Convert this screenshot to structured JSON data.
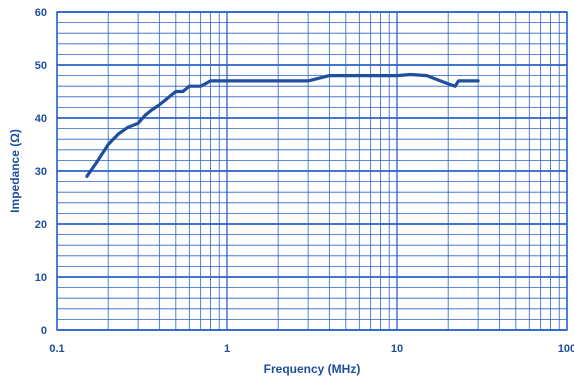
{
  "chart_data": {
    "type": "line",
    "title": "",
    "xlabel": "Frequency (MHz)",
    "ylabel": "Impedance (Ω)",
    "xscale": "log",
    "xlim": [
      0.1,
      100
    ],
    "ylim": [
      0,
      60
    ],
    "x_ticks": [
      "0.1",
      "1",
      "10",
      "100"
    ],
    "y_ticks": [
      "0",
      "10",
      "20",
      "30",
      "40",
      "50",
      "60"
    ],
    "grid": true,
    "legend": "none",
    "colors": {
      "series": "#1f4e9e",
      "grid": "#2a62c8",
      "text": "#1f4e9e"
    },
    "series": [
      {
        "x": [
          0.15,
          0.17,
          0.2,
          0.23,
          0.26,
          0.3,
          0.33,
          0.36,
          0.4,
          0.45,
          0.5,
          0.55,
          0.6,
          0.65,
          0.7,
          0.75,
          0.8,
          1,
          2,
          3,
          4,
          5,
          7,
          10,
          12,
          15,
          18,
          21,
          22,
          23,
          25,
          30
        ],
        "y": [
          29,
          31.5,
          35,
          37,
          38.2,
          39,
          40.5,
          41.5,
          42.5,
          43.8,
          45,
          45,
          46,
          46,
          46,
          46.5,
          47,
          47,
          47,
          47,
          48,
          48,
          48,
          48,
          48.2,
          48,
          47,
          46.2,
          46,
          47,
          47,
          47
        ]
      }
    ]
  }
}
